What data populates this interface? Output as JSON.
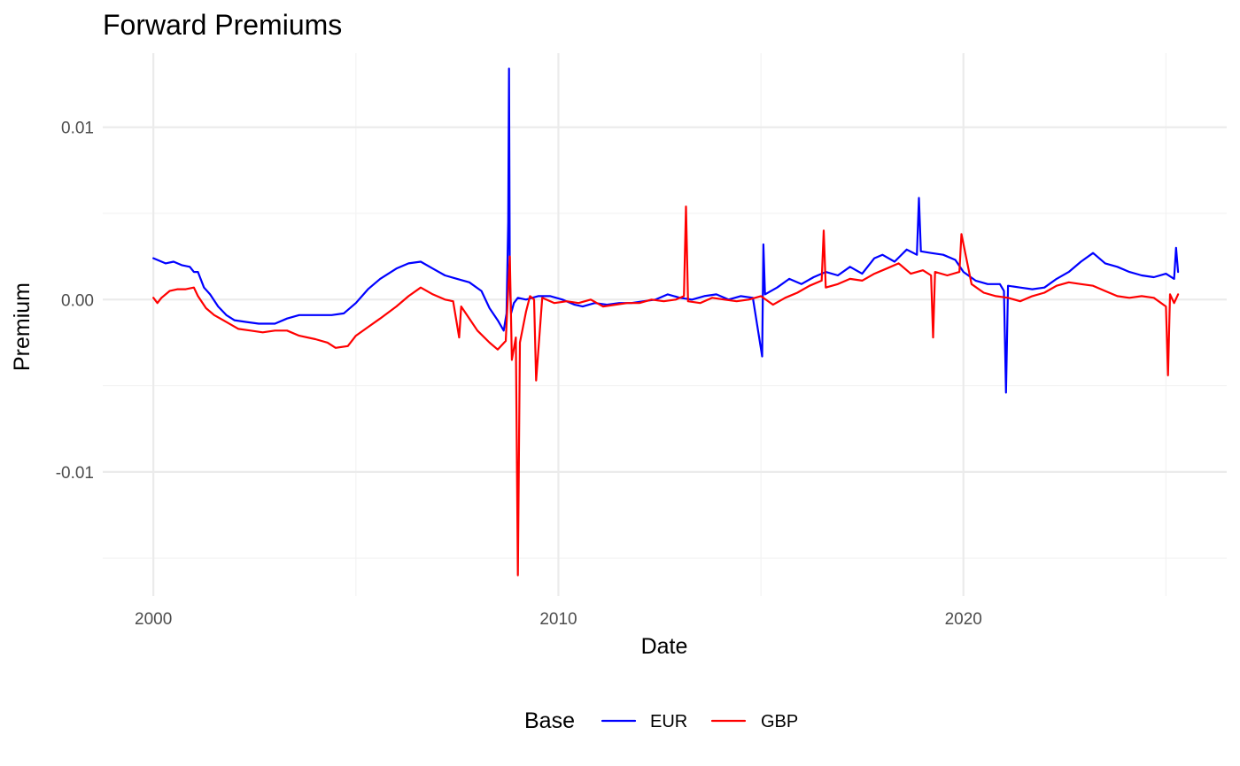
{
  "chart_data": {
    "type": "line",
    "title": "Forward Premiums",
    "xlabel": "Date",
    "ylabel": "Premium",
    "x_range": [
      1998.75,
      2026.5
    ],
    "ylim": [
      -0.0172,
      0.0143
    ],
    "x_ticks": [
      {
        "value": 2000,
        "label": "2000"
      },
      {
        "value": 2010,
        "label": "2010"
      },
      {
        "value": 2020,
        "label": "2020"
      }
    ],
    "x_minor_ticks": [
      2005,
      2015,
      2025
    ],
    "y_ticks": [
      {
        "value": 0.01,
        "label": "0.01"
      },
      {
        "value": 0.0,
        "label": "0.00"
      },
      {
        "value": -0.01,
        "label": "-0.01"
      }
    ],
    "y_minor_ticks": [
      0.005,
      -0.005,
      -0.015
    ],
    "grid": true,
    "legend": {
      "title": "Base",
      "position": "bottom"
    },
    "series": [
      {
        "name": "EUR",
        "color": "#0000ff",
        "x": [
          2000.0,
          2000.1,
          2000.3,
          2000.5,
          2000.7,
          2000.9,
          2001.0,
          2001.1,
          2001.25,
          2001.4,
          2001.6,
          2001.8,
          2002.0,
          2002.3,
          2002.6,
          2003.0,
          2003.3,
          2003.6,
          2004.0,
          2004.4,
          2004.7,
          2005.0,
          2005.3,
          2005.6,
          2006.0,
          2006.3,
          2006.6,
          2006.9,
          2007.2,
          2007.5,
          2007.8,
          2008.1,
          2008.3,
          2008.5,
          2008.65,
          2008.72,
          2008.76,
          2008.78,
          2008.8,
          2008.83,
          2008.9,
          2009.0,
          2009.2,
          2009.5,
          2009.8,
          2010.1,
          2010.4,
          2010.6,
          2010.9,
          2011.2,
          2011.5,
          2011.8,
          2012.1,
          2012.4,
          2012.7,
          2013.0,
          2013.3,
          2013.6,
          2013.9,
          2014.2,
          2014.5,
          2014.8,
          2015.03,
          2015.06,
          2015.1,
          2015.4,
          2015.7,
          2016.0,
          2016.3,
          2016.6,
          2016.9,
          2017.2,
          2017.5,
          2017.8,
          2018.0,
          2018.3,
          2018.6,
          2018.85,
          2018.9,
          2018.95,
          2019.2,
          2019.5,
          2019.8,
          2020.0,
          2020.3,
          2020.6,
          2020.9,
          2021.0,
          2021.05,
          2021.1,
          2021.4,
          2021.7,
          2022.0,
          2022.3,
          2022.6,
          2022.9,
          2023.2,
          2023.5,
          2023.8,
          2024.1,
          2024.4,
          2024.7,
          2025.0,
          2025.2,
          2025.25,
          2025.3
        ],
        "y": [
          0.0024,
          0.0023,
          0.0021,
          0.0022,
          0.002,
          0.0019,
          0.0016,
          0.0016,
          0.0007,
          0.0003,
          -0.0004,
          -0.0009,
          -0.0012,
          -0.0013,
          -0.0014,
          -0.0014,
          -0.0011,
          -0.0009,
          -0.0009,
          -0.0009,
          -0.0008,
          -0.0002,
          0.0006,
          0.0012,
          0.0018,
          0.0021,
          0.0022,
          0.0018,
          0.0014,
          0.0012,
          0.001,
          0.0005,
          -0.0005,
          -0.0012,
          -0.0018,
          -0.0008,
          0.0045,
          0.0134,
          0.0011,
          -0.0008,
          -0.0002,
          0.0001,
          0.0,
          0.0002,
          0.0002,
          0.0,
          -0.0003,
          -0.0004,
          -0.0002,
          -0.0003,
          -0.0002,
          -0.0002,
          -0.0001,
          0.0,
          0.0003,
          0.0001,
          0.0,
          0.0002,
          0.0003,
          0.0,
          0.0002,
          0.0001,
          -0.0033,
          0.0032,
          0.0003,
          0.0007,
          0.0012,
          0.0009,
          0.0013,
          0.0016,
          0.0014,
          0.0019,
          0.0015,
          0.0024,
          0.0026,
          0.0022,
          0.0029,
          0.0026,
          0.0059,
          0.0028,
          0.0027,
          0.0026,
          0.0023,
          0.0016,
          0.0011,
          0.0009,
          0.0009,
          0.0005,
          -0.0054,
          0.0008,
          0.0007,
          0.0006,
          0.0007,
          0.0012,
          0.0016,
          0.0022,
          0.0027,
          0.0021,
          0.0019,
          0.0016,
          0.0014,
          0.0013,
          0.0015,
          0.0012,
          0.003,
          0.0016
        ]
      },
      {
        "name": "GBP",
        "color": "#ff0000",
        "x": [
          2000.0,
          2000.1,
          2000.2,
          2000.4,
          2000.6,
          2000.8,
          2001.0,
          2001.1,
          2001.3,
          2001.5,
          2001.8,
          2002.1,
          2002.4,
          2002.7,
          2003.0,
          2003.3,
          2003.6,
          2004.0,
          2004.3,
          2004.5,
          2004.8,
          2005.0,
          2005.3,
          2005.6,
          2006.0,
          2006.3,
          2006.6,
          2006.9,
          2007.2,
          2007.4,
          2007.55,
          2007.6,
          2007.8,
          2008.0,
          2008.3,
          2008.5,
          2008.7,
          2008.8,
          2008.85,
          2008.95,
          2009.0,
          2009.05,
          2009.2,
          2009.3,
          2009.4,
          2009.45,
          2009.6,
          2009.9,
          2010.2,
          2010.5,
          2010.8,
          2011.1,
          2011.4,
          2011.7,
          2012.0,
          2012.3,
          2012.6,
          2012.9,
          2013.1,
          2013.15,
          2013.2,
          2013.5,
          2013.8,
          2014.1,
          2014.4,
          2014.7,
          2015.0,
          2015.3,
          2015.6,
          2015.9,
          2016.2,
          2016.5,
          2016.55,
          2016.6,
          2016.9,
          2017.2,
          2017.5,
          2017.8,
          2018.1,
          2018.4,
          2018.7,
          2019.0,
          2019.2,
          2019.25,
          2019.3,
          2019.6,
          2019.9,
          2019.95,
          2020.2,
          2020.5,
          2020.8,
          2021.1,
          2021.4,
          2021.7,
          2022.0,
          2022.3,
          2022.6,
          2022.9,
          2023.2,
          2023.5,
          2023.8,
          2024.1,
          2024.4,
          2024.7,
          2025.0,
          2025.05,
          2025.1,
          2025.2,
          2025.3
        ],
        "y": [
          0.0001,
          -0.0002,
          0.0001,
          0.0005,
          0.0006,
          0.0006,
          0.0007,
          0.0002,
          -0.0005,
          -0.0009,
          -0.0013,
          -0.0017,
          -0.0018,
          -0.0019,
          -0.0018,
          -0.0018,
          -0.0021,
          -0.0023,
          -0.0025,
          -0.0028,
          -0.0027,
          -0.0021,
          -0.0016,
          -0.0011,
          -0.0004,
          0.0002,
          0.0007,
          0.0003,
          0.0,
          -0.0001,
          -0.0022,
          -0.0004,
          -0.0011,
          -0.0018,
          -0.0025,
          -0.0029,
          -0.0024,
          0.0025,
          -0.0035,
          -0.0022,
          -0.016,
          -0.0025,
          -0.0007,
          0.0002,
          0.0,
          -0.0047,
          0.0001,
          -0.0002,
          -0.0001,
          -0.0002,
          0.0,
          -0.0004,
          -0.0003,
          -0.0002,
          -0.0002,
          0.0,
          -0.0001,
          0.0,
          0.0002,
          0.0054,
          -0.0001,
          -0.0002,
          0.0001,
          0.0,
          -0.0001,
          0.0,
          0.0002,
          -0.0003,
          0.0001,
          0.0004,
          0.0008,
          0.0011,
          0.004,
          0.0007,
          0.0009,
          0.0012,
          0.0011,
          0.0015,
          0.0018,
          0.0021,
          0.0015,
          0.0017,
          0.0014,
          -0.0022,
          0.0016,
          0.0014,
          0.0016,
          0.0038,
          0.0009,
          0.0004,
          0.0002,
          0.0001,
          -0.0001,
          0.0002,
          0.0004,
          0.0008,
          0.001,
          0.0009,
          0.0008,
          0.0005,
          0.0002,
          0.0001,
          0.0002,
          0.0001,
          -0.0004,
          -0.0044,
          0.0003,
          -0.0002,
          0.0003
        ]
      }
    ]
  }
}
